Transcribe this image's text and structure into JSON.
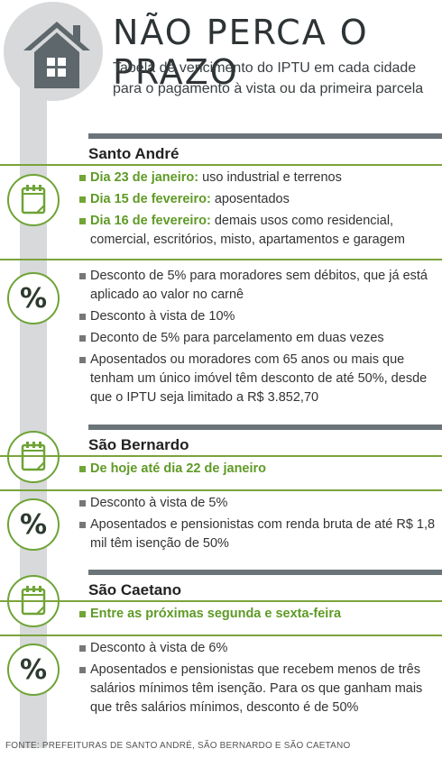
{
  "title": "NÃO PERCA O PRAZO",
  "subtitle": "Tabela de vencimento do IPTU em cada cidade para o pagamento à vista ou da primeira parcela",
  "colors": {
    "accent_green": "#6ea336",
    "bar_gray": "#6b7479",
    "spine_gray": "#d7d9da"
  },
  "icons": {
    "header": "house-icon",
    "dates": "calendar-icon",
    "discounts": "percent-icon"
  },
  "cities": [
    {
      "name": "Santo André",
      "dates": [
        {
          "label": "Dia 23 de janeiro:",
          "text": " uso industrial e terrenos"
        },
        {
          "label": "Dia 15 de fevereiro:",
          "text": " aposentados"
        },
        {
          "label": "Dia 16 de fevereiro:",
          "text": "  demais usos como residencial, comercial, escritórios, misto, apartamentos e garagem"
        }
      ],
      "discounts": [
        "Desconto de 5% para moradores sem débitos, que já está aplicado ao valor no carnê",
        "Desconto à vista de 10%",
        "Deconto de 5% para parcelamento em duas vezes",
        "Aposentados ou moradores com 65 anos ou mais que tenham um único imóvel têm desconto de até 50%, desde que o IPTU seja limitado a R$ 3.852,70"
      ]
    },
    {
      "name": "São Bernardo",
      "dates": [
        {
          "label": "De hoje até dia 22 de janeiro",
          "text": ""
        }
      ],
      "discounts": [
        "Desconto à vista de 5%",
        "Aposentados e pensionistas com renda bruta de até R$ 1,8 mil têm isenção de 50%"
      ]
    },
    {
      "name": "São Caetano",
      "dates": [
        {
          "label": "Entre as próximas segunda e sexta-feira",
          "text": ""
        }
      ],
      "discounts": [
        "Desconto à vista de 6%",
        "Aposentados e pensionistas que recebem menos de três salários mínimos têm isenção. Para os que ganham mais que três salários mínimos, desconto é de 50%"
      ]
    }
  ],
  "source": "FONTE: PREFEITURAS DE SANTO ANDRÉ, SÃO BERNARDO E SÃO CAETANO"
}
